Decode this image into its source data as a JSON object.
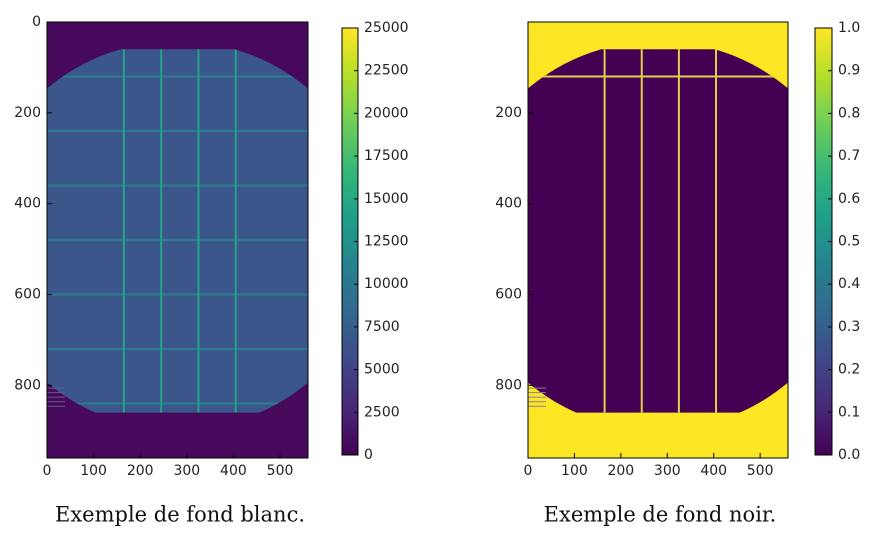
{
  "chart_data": [
    {
      "type": "heatmap",
      "colormap": "viridis",
      "xlim": [
        0,
        560
      ],
      "xticks": [
        0,
        100,
        200,
        300,
        400,
        500
      ],
      "ylim": [
        960,
        0
      ],
      "yticks": [
        0,
        200,
        400,
        600,
        800
      ],
      "clim": [
        0,
        25000
      ],
      "cticks": [
        0,
        2500,
        5000,
        7500,
        10000,
        12500,
        15000,
        17500,
        20000,
        22500,
        25000
      ],
      "caption": "Exemple de fond blanc."
    },
    {
      "type": "heatmap",
      "colormap": "viridis",
      "xlim": [
        0,
        560
      ],
      "xticks": [
        0,
        100,
        200,
        300,
        400,
        500
      ],
      "ylim": [
        960,
        0
      ],
      "yticks": [
        200,
        400,
        600,
        800
      ],
      "clim": [
        0,
        1
      ],
      "cticks": [
        {
          "value": 0,
          "label": "0.0"
        },
        0.1,
        0.2,
        0.3,
        0.4,
        0.5,
        0.6,
        0.7,
        0.8,
        0.9,
        {
          "value": 1,
          "label": "1.0"
        }
      ],
      "caption": "Exemple de fond noir."
    }
  ]
}
